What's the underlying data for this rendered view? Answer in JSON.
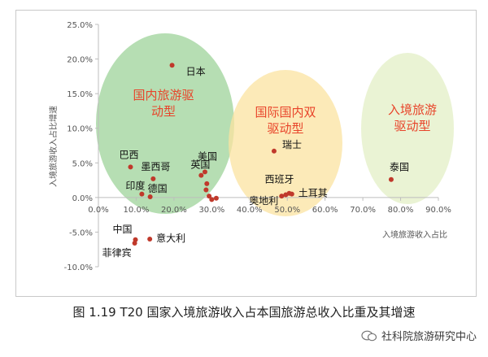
{
  "caption": "图 1.19 T20 国家入境旅游收入占本国旅游总收入比重及其增速",
  "watermark": "社科院旅游研究中心",
  "chart_data": {
    "type": "scatter",
    "xlabel": "入境旅游收入占比",
    "ylabel": "入境旅游收入占比增速",
    "xlim": [
      0,
      90
    ],
    "ylim": [
      -10,
      25
    ],
    "x_ticks": [
      "0.0%",
      "10.0%",
      "20.0%",
      "30.0%",
      "40.0%",
      "50.0%",
      "60.0%",
      "70.0%",
      "80.0%",
      "90.0%"
    ],
    "y_ticks": [
      "25.0%",
      "20.0%",
      "15.0%",
      "10.0%",
      "5.0%",
      "0.0%",
      "-5.0%",
      "-10.0%"
    ],
    "point_color": "#c0392b",
    "groups": [
      {
        "label": "国内旅游驱\n动型",
        "fill": "#9ed39a",
        "label_color": "#e8442a"
      },
      {
        "label": "国际国内双\n驱动型",
        "fill": "#fbe3a0",
        "label_color": "#e8442a"
      },
      {
        "label": "入境旅游\n驱动型",
        "fill": "#e3efc6",
        "label_color": "#e8442a"
      }
    ],
    "points": [
      {
        "name": "日本",
        "x": 19.5,
        "y": 19.1
      },
      {
        "name": "巴西",
        "x": 8.5,
        "y": 4.4
      },
      {
        "name": "墨西哥",
        "x": 14.5,
        "y": 2.7
      },
      {
        "name": "英国",
        "x": 27.2,
        "y": 3.2
      },
      {
        "name": "印度",
        "x": 11.5,
        "y": 0.5
      },
      {
        "name": "德国",
        "x": 13.7,
        "y": 0.1
      },
      {
        "name": "美国",
        "x": 28.2,
        "y": 3.7
      },
      {
        "name": "",
        "x": 28.7,
        "y": 2.0
      },
      {
        "name": "",
        "x": 28.5,
        "y": 1.1
      },
      {
        "name": "",
        "x": 29.3,
        "y": 0.2
      },
      {
        "name": "",
        "x": 30.0,
        "y": -0.3
      },
      {
        "name": "",
        "x": 31.2,
        "y": -0.1
      },
      {
        "name": "中国",
        "x": 9.8,
        "y": -6.1
      },
      {
        "name": "菲律宾",
        "x": 9.6,
        "y": -6.6
      },
      {
        "name": "意大利",
        "x": 13.6,
        "y": -6.0
      },
      {
        "name": "瑞士",
        "x": 46.5,
        "y": 6.7
      },
      {
        "name": "西班牙",
        "x": 50.5,
        "y": 0.6
      },
      {
        "name": "奥地利",
        "x": 48.5,
        "y": 0.2
      },
      {
        "name": "",
        "x": 49.6,
        "y": 0.4
      },
      {
        "name": "土耳其",
        "x": 51.2,
        "y": 0.5
      },
      {
        "name": "泰国",
        "x": 77.5,
        "y": 2.6
      }
    ]
  }
}
